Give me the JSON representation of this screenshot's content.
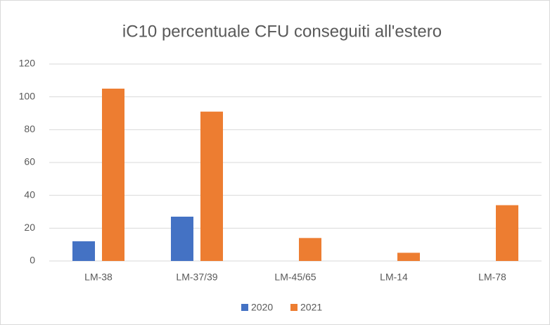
{
  "chart_data": {
    "type": "bar",
    "title": "iC10 percentuale CFU conseguiti all'estero",
    "categories": [
      "LM-38",
      "LM-37/39",
      "LM-45/65",
      "LM-14",
      "LM-78"
    ],
    "series": [
      {
        "name": "2020",
        "color": "#4472c4",
        "values": [
          12,
          27,
          0,
          0,
          0
        ]
      },
      {
        "name": "2021",
        "color": "#ed7d31",
        "values": [
          105,
          91,
          14,
          5,
          34
        ]
      }
    ],
    "ylim": [
      0,
      120
    ],
    "yticks": [
      0,
      20,
      40,
      60,
      80,
      100,
      120
    ],
    "grid": true,
    "legend": "bottom"
  }
}
